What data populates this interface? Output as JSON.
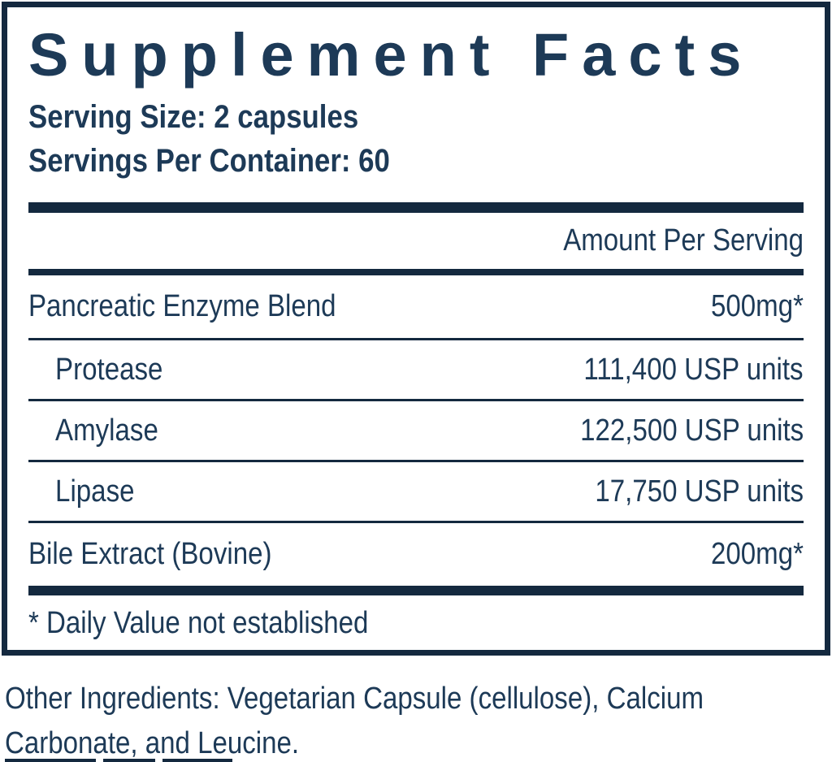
{
  "colors": {
    "ink": "#1d3a57",
    "rule": "#14293f",
    "bg": "#ffffff"
  },
  "label": {
    "title": "Supplement Facts",
    "serving_size": "Serving Size: 2 capsules",
    "servings_per_container": "Servings Per Container: 60",
    "amount_per_serving_header": "Amount Per Serving",
    "ingredients": [
      {
        "name": "Pancreatic Enzyme Blend",
        "amount": "500mg*",
        "indent": false
      },
      {
        "name": "Protease",
        "amount": "111,400 USP units",
        "indent": true
      },
      {
        "name": "Amylase",
        "amount": "122,500 USP units",
        "indent": true
      },
      {
        "name": "Lipase",
        "amount": "17,750 USP units",
        "indent": true
      },
      {
        "name": "Bile Extract (Bovine)",
        "amount": "200mg*",
        "indent": false
      }
    ],
    "footnote": "* Daily Value not established"
  },
  "other_ingredients": {
    "line1": "Other Ingredients: Vegetarian Capsule (cellulose), Calcium",
    "line2": "Carbonate, and Leucine."
  }
}
